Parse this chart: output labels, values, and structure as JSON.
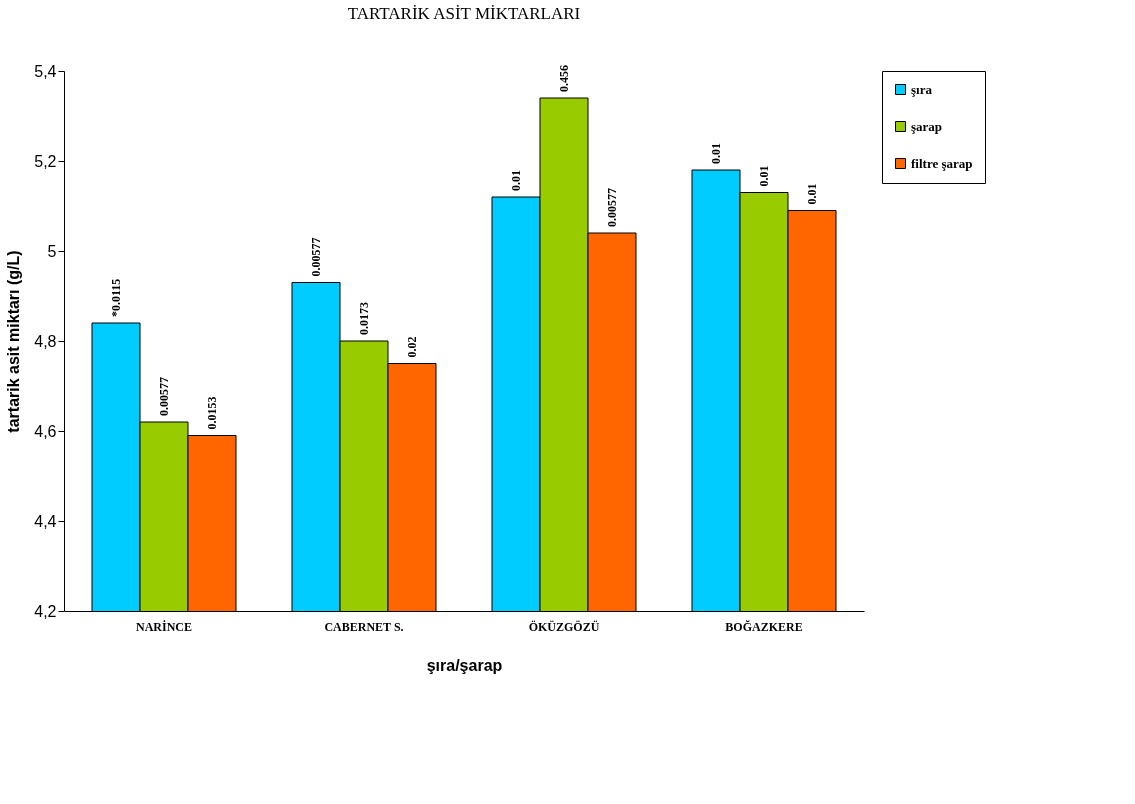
{
  "chart_data": {
    "type": "bar",
    "title": "TARTARİK ASİT MİKTARLARI",
    "xlabel": "şıra/şarap",
    "ylabel": "tartarik asit miktarı (g/L)",
    "categories": [
      "NARİNCE",
      "CABERNET S.",
      "ÖKÜZGÖZÜ",
      "BOĞAZKERE"
    ],
    "series": [
      {
        "name": "şıra",
        "color": "#00ccff",
        "values": [
          4.84,
          4.93,
          5.12,
          5.18
        ]
      },
      {
        "name": "şarap",
        "color": "#99cc00",
        "values": [
          4.62,
          4.8,
          5.34,
          5.13
        ]
      },
      {
        "name": "filtre şarap",
        "color": "#ff6600",
        "values": [
          4.59,
          4.75,
          5.04,
          5.09
        ]
      }
    ],
    "annotations": [
      "*0.0115",
      "0.00577",
      "0.0153",
      "0.00577",
      "0.0173",
      "0.02",
      "0.01",
      "0.456",
      "0.00577",
      "0.01",
      "0.01",
      "0.01"
    ],
    "ylim": [
      4.2,
      5.4
    ],
    "yticks": [
      {
        "value": 4.2,
        "label": "4,2"
      },
      {
        "value": 4.4,
        "label": "4,4"
      },
      {
        "value": 4.6,
        "label": "4,6"
      },
      {
        "value": 4.8,
        "label": "4,8"
      },
      5,
      {
        "value": 5.2,
        "label": "5,2"
      },
      {
        "value": 5.4,
        "label": "5,4"
      }
    ],
    "grid": false,
    "legend": "right"
  }
}
